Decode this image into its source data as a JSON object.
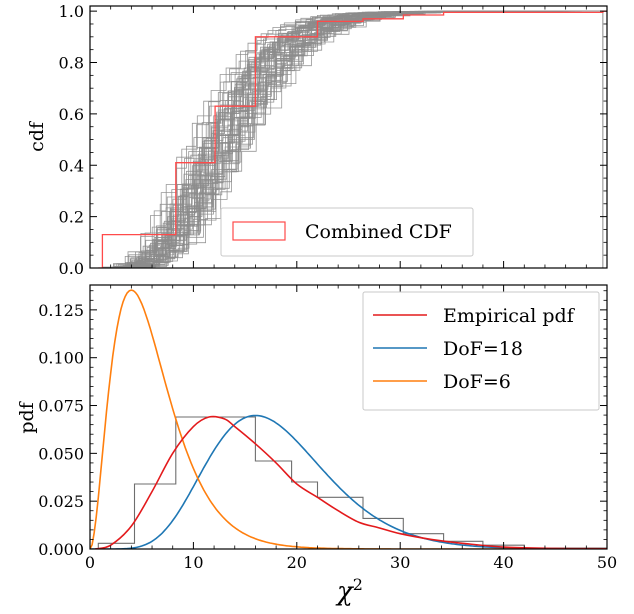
{
  "chart_data": [
    {
      "type": "step",
      "panel": "top",
      "ylabel": "cdf",
      "xlim": [
        0,
        50
      ],
      "ylim": [
        0,
        1.02
      ],
      "ytick_labels": [
        "0.0",
        "0.2",
        "0.4",
        "0.6",
        "0.8",
        "1.0"
      ],
      "yticks": [
        0,
        0.2,
        0.4,
        0.6,
        0.8,
        1.0
      ],
      "xticks": [
        0,
        10,
        20,
        30,
        40,
        50
      ],
      "legend": {
        "position": "bottom-center",
        "entries": [
          {
            "label": "Combined CDF",
            "color": "#ff4a4a"
          }
        ]
      },
      "series": [
        {
          "name": "Combined CDF",
          "color": "#ff4a4a",
          "x": [
            0.8,
            1.2,
            4.3,
            8.3,
            8.3,
            12.1,
            16.0,
            16.0,
            22.0,
            26.4,
            30.3,
            34.2,
            49.6
          ],
          "y": [
            0.0,
            0.13,
            0.13,
            0.41,
            0.41,
            0.63,
            0.76,
            0.9,
            0.96,
            0.97,
            0.985,
            0.995,
            1.0
          ]
        }
      ],
      "background_series": {
        "color": "#8c8c8c",
        "count": "many",
        "description_hidden": true
      }
    },
    {
      "type": "line",
      "panel": "bottom",
      "xlabel": "χ²",
      "ylabel": "pdf",
      "xlim": [
        0,
        50
      ],
      "ylim": [
        0,
        0.138
      ],
      "xtick_labels": [
        "0",
        "10",
        "20",
        "30",
        "40",
        "50"
      ],
      "xticks": [
        0,
        10,
        20,
        30,
        40,
        50
      ],
      "ytick_labels": [
        "0.000",
        "0.025",
        "0.050",
        "0.075",
        "0.100",
        "0.125"
      ],
      "yticks": [
        0,
        0.025,
        0.05,
        0.075,
        0.1,
        0.125
      ],
      "legend": {
        "position": "top-right",
        "entries": [
          {
            "label": "Empirical pdf",
            "color": "#e31a1c"
          },
          {
            "label": "DoF=18",
            "color": "#1f77b4"
          },
          {
            "label": "DoF=6",
            "color": "#ff7f0e"
          }
        ]
      },
      "histogram": {
        "color": "#6e6e6e",
        "edges": [
          0.8,
          4.3,
          8.3,
          12.1,
          16.0,
          19.5,
          22.0,
          26.4,
          30.3,
          34.2,
          38.0,
          42.0,
          50.0
        ],
        "values": [
          0.003,
          0.034,
          0.069,
          0.069,
          0.046,
          0.035,
          0.027,
          0.016,
          0.008,
          0.004,
          0.002,
          0.0005
        ]
      },
      "series": [
        {
          "name": "Empirical pdf",
          "color": "#e31a1c",
          "x": [
            0.5,
            2,
            4,
            6,
            8,
            10,
            11.5,
            13,
            14,
            16,
            18,
            20,
            22,
            24,
            26,
            28,
            30,
            33,
            36,
            40,
            45,
            50
          ],
          "y": [
            0.0,
            0.002,
            0.012,
            0.03,
            0.05,
            0.064,
            0.069,
            0.068,
            0.064,
            0.055,
            0.045,
            0.034,
            0.027,
            0.02,
            0.014,
            0.011,
            0.008,
            0.005,
            0.003,
            0.001,
            0.0003,
            0.0001
          ]
        },
        {
          "name": "DoF=18",
          "color": "#1f77b4",
          "dof": 18
        },
        {
          "name": "DoF=6",
          "color": "#ff7f0e",
          "dof": 6
        }
      ]
    }
  ]
}
